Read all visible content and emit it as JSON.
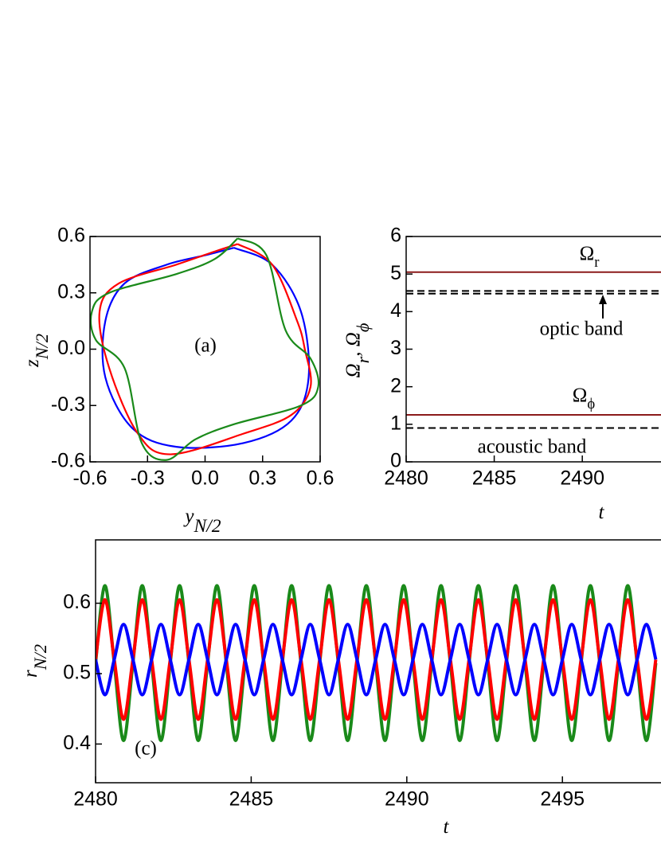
{
  "chart_data": [
    {
      "type": "line",
      "annotations": [
        "(a)"
      ],
      "xlabel": [
        "y",
        "N/2"
      ],
      "ylabel": [
        "z",
        "N/2"
      ],
      "xlim": [
        -0.6,
        0.6
      ],
      "ylim": [
        -0.6,
        0.6
      ],
      "xticks": [
        -0.6,
        -0.3,
        {
          "value": 0,
          "label": "0.0"
        },
        0.3,
        0.6
      ],
      "yticks": [
        -0.6,
        -0.3,
        {
          "value": 0,
          "label": "0.0"
        },
        0.3,
        0.6
      ],
      "series": [
        {
          "color": "#0000ff",
          "x": [
            0.15,
            0.35,
            0.5,
            0.54,
            0.45,
            0.2,
            -0.15,
            -0.38,
            -0.52,
            -0.52,
            -0.42,
            -0.2,
            0.0,
            0.15
          ],
          "values": [
            0.54,
            0.45,
            0.2,
            -0.15,
            -0.38,
            -0.5,
            -0.52,
            -0.42,
            -0.15,
            0.15,
            0.35,
            0.45,
            0.5,
            0.54
          ]
        },
        {
          "color": "#ff0000",
          "x": [
            0.17,
            0.35,
            0.48,
            0.52,
            0.55,
            0.45,
            0.2,
            -0.18,
            -0.35,
            -0.5,
            -0.55,
            -0.45,
            -0.15,
            0.05,
            0.17
          ],
          "values": [
            0.56,
            0.45,
            0.15,
            0.0,
            -0.2,
            -0.35,
            -0.45,
            -0.56,
            -0.45,
            -0.1,
            0.2,
            0.35,
            0.45,
            0.52,
            0.56
          ]
        },
        {
          "color": "#1a8a1a",
          "x": [
            0.17,
            0.32,
            0.42,
            0.55,
            0.59,
            0.5,
            0.15,
            -0.05,
            -0.2,
            -0.33,
            -0.42,
            -0.57,
            -0.59,
            -0.5,
            -0.15,
            0.05,
            0.17
          ],
          "values": [
            0.59,
            0.5,
            0.1,
            -0.05,
            -0.2,
            -0.3,
            -0.4,
            -0.48,
            -0.59,
            -0.5,
            -0.1,
            0.05,
            0.2,
            0.3,
            0.4,
            0.48,
            0.59
          ]
        }
      ]
    },
    {
      "type": "line",
      "annotations": [
        [
          "Ω",
          "r"
        ],
        "optic band",
        [
          "Ω",
          "ϕ"
        ],
        "acoustic band"
      ],
      "xlabel": [
        "t"
      ],
      "ylabel": [
        "Ω",
        "r",
        ", Ω",
        "ϕ"
      ],
      "x": [
        2480,
        2497
      ],
      "xlim": [
        2480,
        2497
      ],
      "ylim": [
        0,
        6
      ],
      "xticks": [
        2480,
        2485,
        2490
      ],
      "yticks": [
        0,
        1,
        2,
        3,
        4,
        5,
        6
      ],
      "series": [
        {
          "color": "#8b1a1a",
          "values": [
            5.05,
            5.05
          ]
        },
        {
          "color": "#000000",
          "dash": true,
          "values": [
            4.55,
            4.55
          ]
        },
        {
          "color": "#000000",
          "dash": true,
          "values": [
            4.48,
            4.48
          ]
        },
        {
          "color": "#8b1a1a",
          "values": [
            1.25,
            1.25
          ]
        },
        {
          "color": "#000000",
          "dash": true,
          "values": [
            0.9,
            0.9
          ]
        }
      ]
    },
    {
      "type": "line",
      "annotations": [
        "(c)"
      ],
      "xlabel": [
        "t"
      ],
      "ylabel": [
        "r",
        "N/2"
      ],
      "xlim": [
        2480,
        2498.5
      ],
      "ylim": [
        0.345,
        0.69
      ],
      "xticks": [
        2480,
        2485,
        2490,
        2495
      ],
      "yticks": [
        0.4,
        0.5,
        0.6
      ],
      "x": [
        2480,
        2480.3,
        2480.6,
        2480.9,
        2481.2,
        2481.5,
        2481.8,
        2482.1,
        2482.4,
        2482.7,
        2483,
        2483.3,
        2483.6,
        2483.9,
        2484.2,
        2484.5,
        2484.8,
        2485.1,
        2485.4,
        2485.7,
        2486,
        2486.3,
        2486.6,
        2486.9,
        2487.2,
        2487.5,
        2487.8,
        2488.1,
        2488.4,
        2488.7,
        2489,
        2489.3,
        2489.6,
        2489.9,
        2490.2,
        2490.5,
        2490.8,
        2491.1,
        2491.4,
        2491.7,
        2492,
        2492.3,
        2492.6,
        2492.9,
        2493.2,
        2493.5,
        2493.8,
        2494.1,
        2494.4,
        2494.7,
        2495,
        2495.3,
        2495.6,
        2495.9,
        2496.2,
        2496.5,
        2496.8,
        2497.1,
        2497.4,
        2497.7,
        2498
      ],
      "series": [
        {
          "color": "#1a8a1a",
          "values": [
            0.515,
            0.625,
            0.515,
            0.405,
            0.515,
            0.625,
            0.515,
            0.405,
            0.515,
            0.625,
            0.515,
            0.405,
            0.515,
            0.625,
            0.515,
            0.405,
            0.515,
            0.625,
            0.515,
            0.405,
            0.515,
            0.625,
            0.515,
            0.405,
            0.515,
            0.625,
            0.515,
            0.405,
            0.515,
            0.625,
            0.515,
            0.405,
            0.515,
            0.625,
            0.515,
            0.405,
            0.515,
            0.625,
            0.515,
            0.405,
            0.515,
            0.625,
            0.515,
            0.405,
            0.515,
            0.625,
            0.515,
            0.405,
            0.515,
            0.625,
            0.515,
            0.405,
            0.515,
            0.625,
            0.515,
            0.405,
            0.515,
            0.625,
            0.515,
            0.405,
            0.515
          ]
        },
        {
          "color": "#ff0000",
          "values": [
            0.52,
            0.605,
            0.52,
            0.435,
            0.52,
            0.605,
            0.52,
            0.435,
            0.52,
            0.605,
            0.52,
            0.435,
            0.52,
            0.605,
            0.52,
            0.435,
            0.52,
            0.605,
            0.52,
            0.435,
            0.52,
            0.605,
            0.52,
            0.435,
            0.52,
            0.605,
            0.52,
            0.435,
            0.52,
            0.605,
            0.52,
            0.435,
            0.52,
            0.605,
            0.52,
            0.435,
            0.52,
            0.605,
            0.52,
            0.435,
            0.52,
            0.605,
            0.52,
            0.435,
            0.52,
            0.605,
            0.52,
            0.435,
            0.52,
            0.605,
            0.52,
            0.435,
            0.52,
            0.605,
            0.52,
            0.435,
            0.52,
            0.605,
            0.52,
            0.435,
            0.52
          ]
        },
        {
          "color": "#0000ff",
          "values": [
            0.52,
            0.47,
            0.52,
            0.57,
            0.52,
            0.47,
            0.52,
            0.57,
            0.52,
            0.47,
            0.52,
            0.57,
            0.52,
            0.47,
            0.52,
            0.57,
            0.52,
            0.47,
            0.52,
            0.57,
            0.52,
            0.47,
            0.52,
            0.57,
            0.52,
            0.47,
            0.52,
            0.57,
            0.52,
            0.47,
            0.52,
            0.57,
            0.52,
            0.47,
            0.52,
            0.57,
            0.52,
            0.47,
            0.52,
            0.57,
            0.52,
            0.47,
            0.52,
            0.57,
            0.52,
            0.47,
            0.52,
            0.57,
            0.52,
            0.47,
            0.52,
            0.57,
            0.52,
            0.47,
            0.52,
            0.57,
            0.52,
            0.47,
            0.52,
            0.57,
            0.52
          ]
        }
      ]
    }
  ]
}
